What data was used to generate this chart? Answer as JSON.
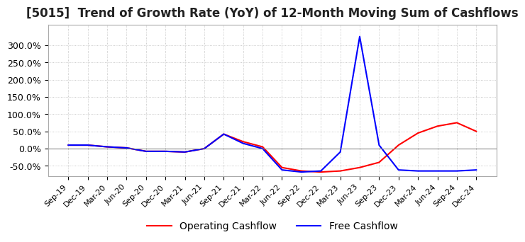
{
  "title": "[5015]  Trend of Growth Rate (YoY) of 12-Month Moving Sum of Cashflows",
  "title_fontsize": 12,
  "background_color": "#ffffff",
  "grid_color": "#bbbbbb",
  "legend_entries": [
    "Operating Cashflow",
    "Free Cashflow"
  ],
  "legend_colors": [
    "#ff0000",
    "#0000ff"
  ],
  "dates": [
    "Sep-19",
    "Dec-19",
    "Mar-20",
    "Jun-20",
    "Sep-20",
    "Dec-20",
    "Mar-21",
    "Jun-21",
    "Sep-21",
    "Dec-21",
    "Mar-22",
    "Jun-22",
    "Sep-22",
    "Dec-22",
    "Mar-23",
    "Jun-23",
    "Sep-23",
    "Dec-23",
    "Mar-24",
    "Jun-24",
    "Sep-24",
    "Dec-24"
  ],
  "operating_cashflow": [
    0.1,
    0.1,
    0.05,
    0.02,
    -0.08,
    -0.08,
    -0.1,
    0.0,
    0.42,
    0.2,
    0.05,
    -0.55,
    -0.65,
    -0.68,
    -0.65,
    -0.55,
    -0.4,
    0.1,
    0.45,
    0.65,
    0.75,
    0.5
  ],
  "free_cashflow": [
    0.1,
    0.1,
    0.05,
    0.02,
    -0.08,
    -0.08,
    -0.1,
    0.0,
    0.42,
    0.15,
    0.0,
    -0.62,
    -0.68,
    -0.65,
    -0.1,
    3.25,
    0.1,
    -0.62,
    -0.65,
    -0.65,
    -0.65,
    -0.62
  ],
  "ylim": [
    -0.8,
    3.6
  ],
  "yticks": [
    -0.5,
    0.0,
    0.5,
    1.0,
    1.5,
    2.0,
    2.5,
    3.0
  ],
  "ytick_labels": [
    "-50.0%",
    "0.0%",
    "50.0%",
    "100.0%",
    "150.0%",
    "200.0%",
    "250.0%",
    "300.0%"
  ]
}
